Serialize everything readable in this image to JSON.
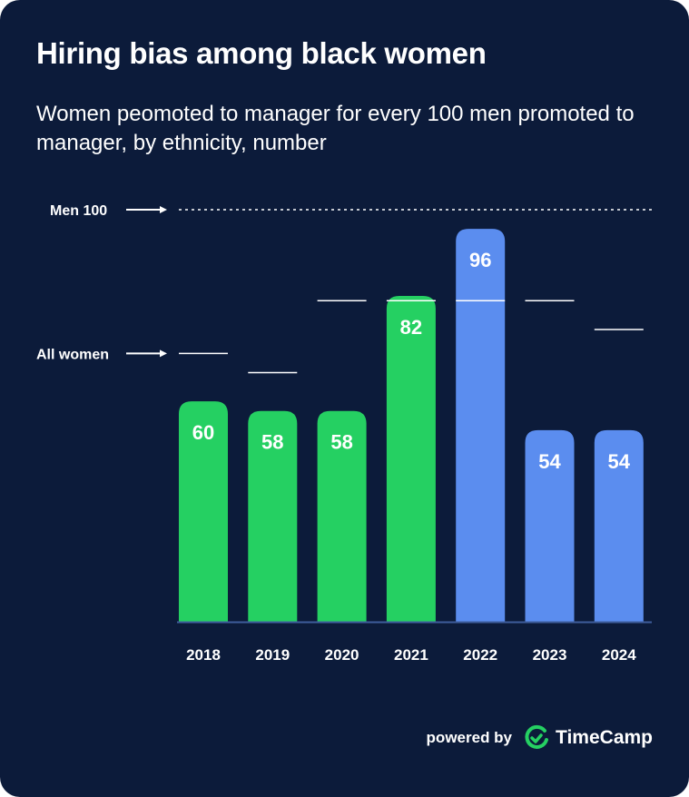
{
  "title": "Hiring bias among black women",
  "subtitle": "Women peomoted to manager for every 100 men promoted to manager, by ethnicity, number",
  "footer": {
    "powered_by": "powered by",
    "brand": "TimeCamp"
  },
  "colors": {
    "background": "#0c1b3a",
    "green": "#25d062",
    "blue": "#5b8def",
    "text": "#ffffff",
    "axis": "#3e5c9a"
  },
  "chart_data": {
    "type": "bar",
    "title": "Hiring bias among black women",
    "subtitle": "Women peomoted to manager for every 100 men promoted to manager, by ethnicity, number",
    "categories": [
      "2018",
      "2019",
      "2020",
      "2021",
      "2022",
      "2023",
      "2024"
    ],
    "values": [
      60,
      58,
      58,
      82,
      96,
      54,
      54
    ],
    "bar_colors": [
      "green",
      "green",
      "green",
      "green",
      "blue",
      "blue",
      "blue"
    ],
    "all_women": [
      70,
      66,
      81,
      81,
      81,
      81,
      75
    ],
    "reference_line": {
      "label": "Men 100",
      "value": 100
    },
    "all_women_label": "All women",
    "xlabel": "",
    "ylabel": "",
    "ylim": [
      14,
      100
    ],
    "grid": false
  }
}
